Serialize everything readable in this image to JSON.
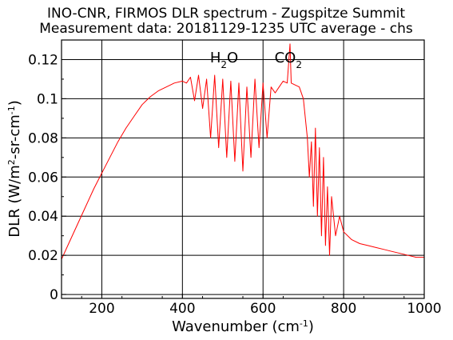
{
  "chart_data": {
    "type": "line",
    "title": "INO-CNR, FIRMOS DLR spectrum - Zugspitze Summit",
    "subtitle": "Measurement data: 20181129-1235 UTC average - chs",
    "xlabel": {
      "main": "Wavenumber (cm",
      "sup": "-1",
      "tail": ")"
    },
    "ylabel": {
      "main": "DLR (W/m",
      "sup1": "2",
      "mid": "-sr-cm",
      "sup2": "-1",
      "tail": ")"
    },
    "xlim": [
      100,
      1000
    ],
    "ylim": [
      -0.002,
      0.13
    ],
    "x_ticks": [
      200,
      400,
      600,
      800,
      1000
    ],
    "y_ticks": [
      0,
      0.02,
      0.04,
      0.06,
      0.08,
      0.1,
      0.12
    ],
    "y_tick_labels": [
      "0",
      "0.02",
      "0.04",
      "0.06",
      "0.08",
      "0.1",
      "0.12"
    ],
    "grid": true,
    "annotations": [
      {
        "base": "H",
        "sub": "2",
        "tail": "O",
        "x": 520
      },
      {
        "base": "CO",
        "sub": "2",
        "tail": "",
        "x": 680
      }
    ],
    "series": [
      {
        "color": "#ff0000",
        "x": [
          100,
          120,
          140,
          160,
          180,
          200,
          220,
          240,
          260,
          280,
          300,
          320,
          340,
          360,
          380,
          400,
          410,
          420,
          430,
          440,
          450,
          460,
          470,
          480,
          490,
          500,
          510,
          520,
          530,
          540,
          550,
          560,
          570,
          580,
          590,
          600,
          610,
          620,
          630,
          640,
          650,
          660,
          667,
          670,
          680,
          690,
          700,
          710,
          715,
          720,
          725,
          730,
          735,
          740,
          745,
          750,
          755,
          760,
          765,
          770,
          780,
          790,
          800,
          820,
          840,
          860,
          880,
          900,
          920,
          940,
          960,
          980,
          1000
        ],
        "y": [
          0.018,
          0.027,
          0.036,
          0.045,
          0.054,
          0.062,
          0.07,
          0.078,
          0.085,
          0.091,
          0.097,
          0.101,
          0.104,
          0.106,
          0.108,
          0.109,
          0.108,
          0.111,
          0.099,
          0.112,
          0.095,
          0.11,
          0.08,
          0.112,
          0.075,
          0.11,
          0.07,
          0.109,
          0.068,
          0.108,
          0.063,
          0.106,
          0.07,
          0.11,
          0.075,
          0.108,
          0.08,
          0.106,
          0.103,
          0.106,
          0.109,
          0.108,
          0.128,
          0.108,
          0.107,
          0.106,
          0.1,
          0.08,
          0.06,
          0.078,
          0.045,
          0.085,
          0.04,
          0.075,
          0.03,
          0.07,
          0.025,
          0.055,
          0.02,
          0.05,
          0.03,
          0.04,
          0.032,
          0.028,
          0.026,
          0.025,
          0.024,
          0.023,
          0.022,
          0.021,
          0.02,
          0.019,
          0.019
        ]
      }
    ]
  }
}
